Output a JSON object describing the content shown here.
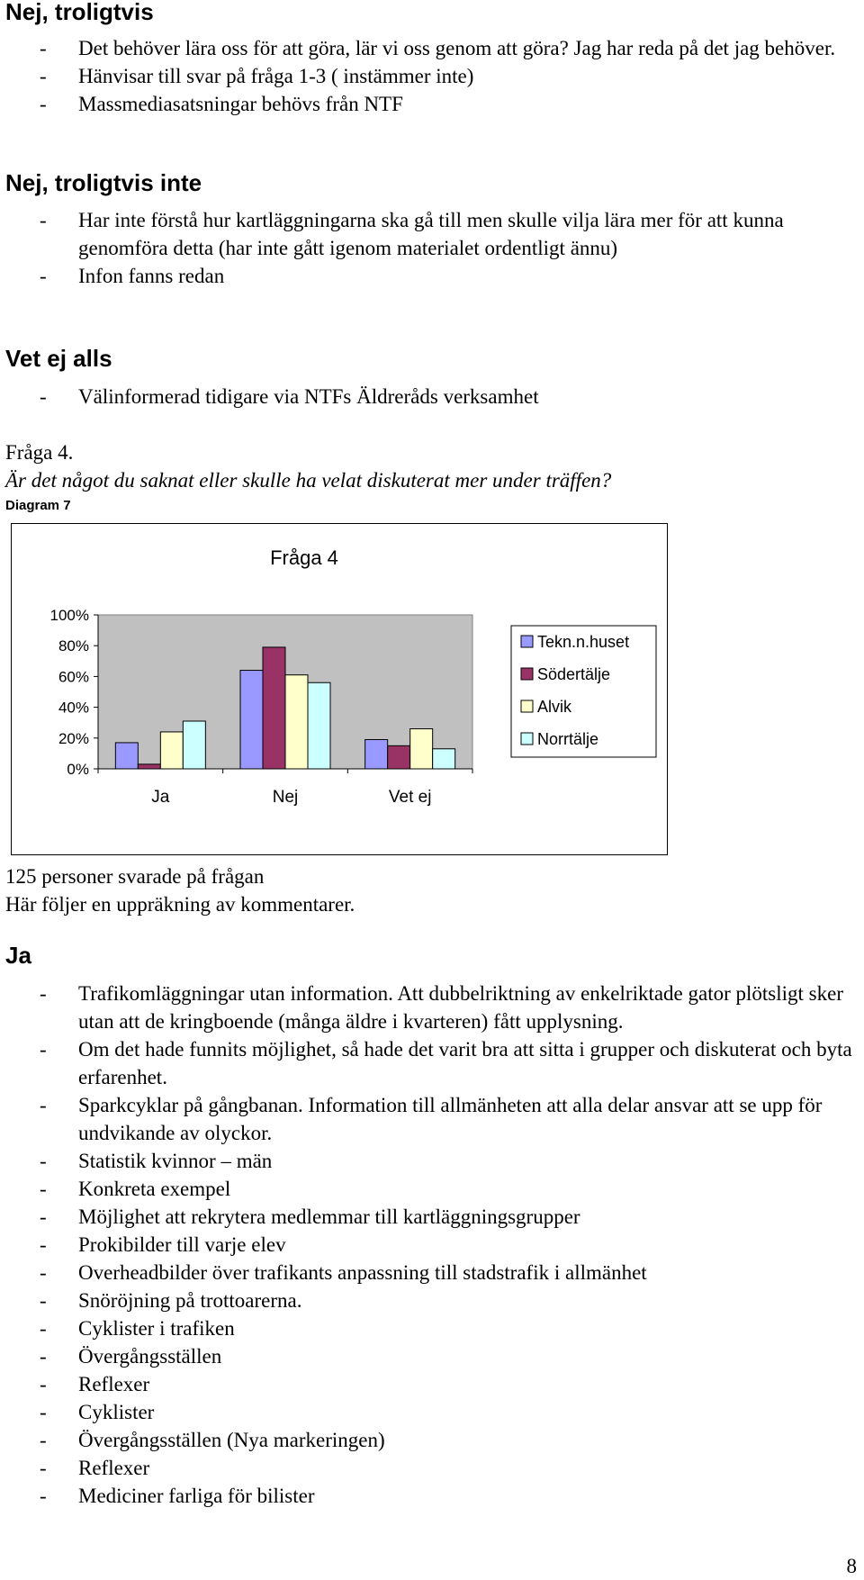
{
  "sections_top": [
    {
      "heading": "Nej, troligtvis",
      "items": [
        "Det behöver lära oss för att göra, lär vi oss genom att göra? Jag har reda på det jag behöver.",
        "Hänvisar till svar på fråga 1-3 ( instämmer inte)",
        "Massmediasatsningar behövs från NTF"
      ]
    },
    {
      "heading": "Nej, troligtvis inte",
      "items": [
        "Har inte förstå hur kartläggningarna ska gå till men skulle vilja lära mer för att kunna genomföra detta (har inte gått igenom materialet ordentligt ännu)",
        "Infon fanns redan"
      ]
    },
    {
      "heading": "Vet ej alls",
      "items": [
        "Välinformerad tidigare via NTFs  Äldreråds verksamhet"
      ]
    }
  ],
  "question": {
    "label": "Fråga 4.",
    "text": "Är det något du saknat eller skulle ha velat diskuterat mer under träffen?",
    "diagram_caption": "Diagram 7"
  },
  "chart_data": {
    "type": "bar",
    "title": "Fråga 4",
    "categories": [
      "Ja",
      "Nej",
      "Vet ej"
    ],
    "series": [
      {
        "name": "Tekn.n.huset",
        "values": [
          17,
          64,
          19
        ],
        "color": "#9999ff"
      },
      {
        "name": "Södertälje",
        "values": [
          3,
          79,
          15
        ],
        "color": "#993366"
      },
      {
        "name": "Alvik",
        "values": [
          24,
          61,
          26
        ],
        "color": "#ffffcc"
      },
      {
        "name": "Norrtälje",
        "values": [
          31,
          56,
          13
        ],
        "color": "#ccffff"
      }
    ],
    "ylim": [
      0,
      100
    ],
    "yticks": [
      "0%",
      "20%",
      "40%",
      "60%",
      "80%",
      "100%"
    ],
    "grid": false,
    "plot_background": "#c0c0c0",
    "legend": "right"
  },
  "summary": {
    "respondents": "125 personer svarade på frågan",
    "intro": "Här följer en uppräkning av kommentarer."
  },
  "ja_section": {
    "heading": "Ja",
    "items": [
      "Trafikomläggningar utan information. Att dubbelriktning av enkelriktade gator plötsligt sker utan att de kringboende (många äldre i kvarteren) fått upplysning.",
      "Om det hade funnits möjlighet, så hade det varit bra att sitta i grupper och diskuterat och byta erfarenhet.",
      "Sparkcyklar på gångbanan. Information till allmänheten att alla delar ansvar att se upp för undvikande av olyckor.",
      "Statistik kvinnor – män",
      "Konkreta exempel",
      "Möjlighet att rekrytera medlemmar till kartläggningsgrupper",
      "Prokibilder till varje elev",
      "Overheadbilder över trafikants anpassning till stadstrafik i allmänhet",
      "Snöröjning på trottoarerna.",
      "Cyklister i trafiken",
      "Övergångsställen",
      "Reflexer",
      "Cyklister",
      "Övergångsställen (Nya markeringen)",
      "Reflexer",
      "Mediciner farliga för bilister"
    ]
  },
  "page_number": "8"
}
